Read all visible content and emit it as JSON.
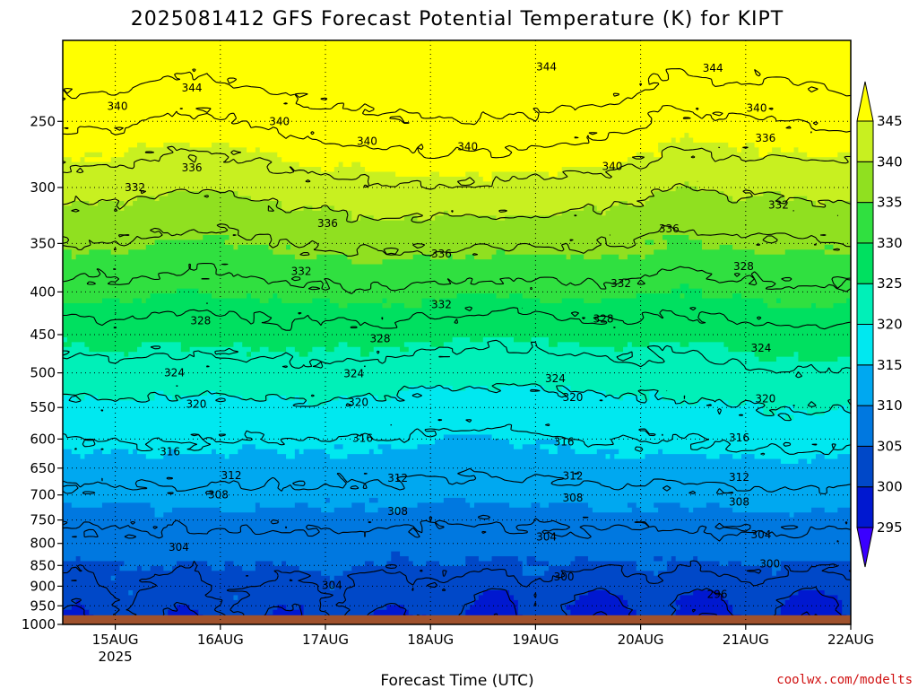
{
  "chart_data": {
    "type": "contour",
    "title": "2025081412 GFS Forecast Potential Temperature (K) for KIPT",
    "xlabel": "Forecast Time (UTC)",
    "ylabel": "",
    "source_label": "coolwx.com/modelts",
    "x_ticks": [
      {
        "label": "15AUG",
        "sub": "2025",
        "hours_from_start": 12
      },
      {
        "label": "16AUG",
        "sub": "",
        "hours_from_start": 36
      },
      {
        "label": "17AUG",
        "sub": "",
        "hours_from_start": 60
      },
      {
        "label": "18AUG",
        "sub": "",
        "hours_from_start": 84
      },
      {
        "label": "19AUG",
        "sub": "",
        "hours_from_start": 108
      },
      {
        "label": "20AUG",
        "sub": "",
        "hours_from_start": 132
      },
      {
        "label": "21AUG",
        "sub": "",
        "hours_from_start": 156
      },
      {
        "label": "22AUG",
        "sub": "",
        "hours_from_start": 180
      }
    ],
    "x_range_hours": [
      0,
      180
    ],
    "y_axis": "pressure (hPa)",
    "y_ticks": [
      250,
      300,
      350,
      400,
      450,
      500,
      550,
      600,
      650,
      700,
      750,
      800,
      850,
      900,
      950,
      1000
    ],
    "y_range": [
      200,
      1000
    ],
    "ground_pressure": 975,
    "colorbar": {
      "levels": [
        295,
        300,
        305,
        310,
        315,
        320,
        325,
        330,
        335,
        340,
        345
      ],
      "colors": [
        "#3a00ff",
        "#0018d0",
        "#0048c8",
        "#0078e0",
        "#00a8f0",
        "#00e8f0",
        "#00f0b8",
        "#00e060",
        "#30e040",
        "#90e020",
        "#c8f020",
        "#ffff00"
      ]
    },
    "contour_interval": 4,
    "contour_labels": [
      {
        "value": 344,
        "hours": 110.5,
        "pressure": 215
      },
      {
        "value": 344,
        "hours": 29.5,
        "pressure": 228
      },
      {
        "value": 344,
        "hours": 148.5,
        "pressure": 216
      },
      {
        "value": 340,
        "hours": 12.5,
        "pressure": 240
      },
      {
        "value": 340,
        "hours": 49.5,
        "pressure": 250
      },
      {
        "value": 340,
        "hours": 69.5,
        "pressure": 264
      },
      {
        "value": 340,
        "hours": 92.5,
        "pressure": 268
      },
      {
        "value": 340,
        "hours": 125.5,
        "pressure": 283
      },
      {
        "value": 340,
        "hours": 158.5,
        "pressure": 241
      },
      {
        "value": 336,
        "hours": 29.5,
        "pressure": 284
      },
      {
        "value": 336,
        "hours": 60.5,
        "pressure": 331
      },
      {
        "value": 336,
        "hours": 86.5,
        "pressure": 360
      },
      {
        "value": 336,
        "hours": 138.5,
        "pressure": 336
      },
      {
        "value": 336,
        "hours": 160.5,
        "pressure": 262
      },
      {
        "value": 332,
        "hours": 16.5,
        "pressure": 300
      },
      {
        "value": 332,
        "hours": 54.5,
        "pressure": 378
      },
      {
        "value": 332,
        "hours": 86.5,
        "pressure": 414
      },
      {
        "value": 332,
        "hours": 127.5,
        "pressure": 391
      },
      {
        "value": 332,
        "hours": 163.5,
        "pressure": 315
      },
      {
        "value": 328,
        "hours": 31.5,
        "pressure": 433
      },
      {
        "value": 328,
        "hours": 72.5,
        "pressure": 455
      },
      {
        "value": 328,
        "hours": 123.5,
        "pressure": 431
      },
      {
        "value": 328,
        "hours": 155.5,
        "pressure": 373
      },
      {
        "value": 324,
        "hours": 25.5,
        "pressure": 500
      },
      {
        "value": 324,
        "hours": 66.5,
        "pressure": 501
      },
      {
        "value": 324,
        "hours": 112.5,
        "pressure": 508
      },
      {
        "value": 324,
        "hours": 159.5,
        "pressure": 467
      },
      {
        "value": 320,
        "hours": 30.5,
        "pressure": 545
      },
      {
        "value": 320,
        "hours": 67.5,
        "pressure": 542
      },
      {
        "value": 320,
        "hours": 116.5,
        "pressure": 535
      },
      {
        "value": 320,
        "hours": 160.5,
        "pressure": 537
      },
      {
        "value": 316,
        "hours": 24.5,
        "pressure": 621
      },
      {
        "value": 316,
        "hours": 68.5,
        "pressure": 599
      },
      {
        "value": 316,
        "hours": 114.5,
        "pressure": 605
      },
      {
        "value": 316,
        "hours": 154.5,
        "pressure": 598
      },
      {
        "value": 312,
        "hours": 38.5,
        "pressure": 663
      },
      {
        "value": 312,
        "hours": 76.5,
        "pressure": 668
      },
      {
        "value": 312,
        "hours": 116.5,
        "pressure": 664
      },
      {
        "value": 312,
        "hours": 154.5,
        "pressure": 667
      },
      {
        "value": 308,
        "hours": 35.5,
        "pressure": 700
      },
      {
        "value": 308,
        "hours": 76.5,
        "pressure": 732
      },
      {
        "value": 308,
        "hours": 116.5,
        "pressure": 706
      },
      {
        "value": 308,
        "hours": 154.5,
        "pressure": 714
      },
      {
        "value": 304,
        "hours": 26.5,
        "pressure": 808
      },
      {
        "value": 304,
        "hours": 61.5,
        "pressure": 898
      },
      {
        "value": 304,
        "hours": 110.5,
        "pressure": 786
      },
      {
        "value": 304,
        "hours": 159.5,
        "pressure": 781
      },
      {
        "value": 300,
        "hours": 114.5,
        "pressure": 877
      },
      {
        "value": 300,
        "hours": 161.5,
        "pressure": 846
      },
      {
        "value": 296,
        "hours": 149.5,
        "pressure": 921
      }
    ]
  }
}
